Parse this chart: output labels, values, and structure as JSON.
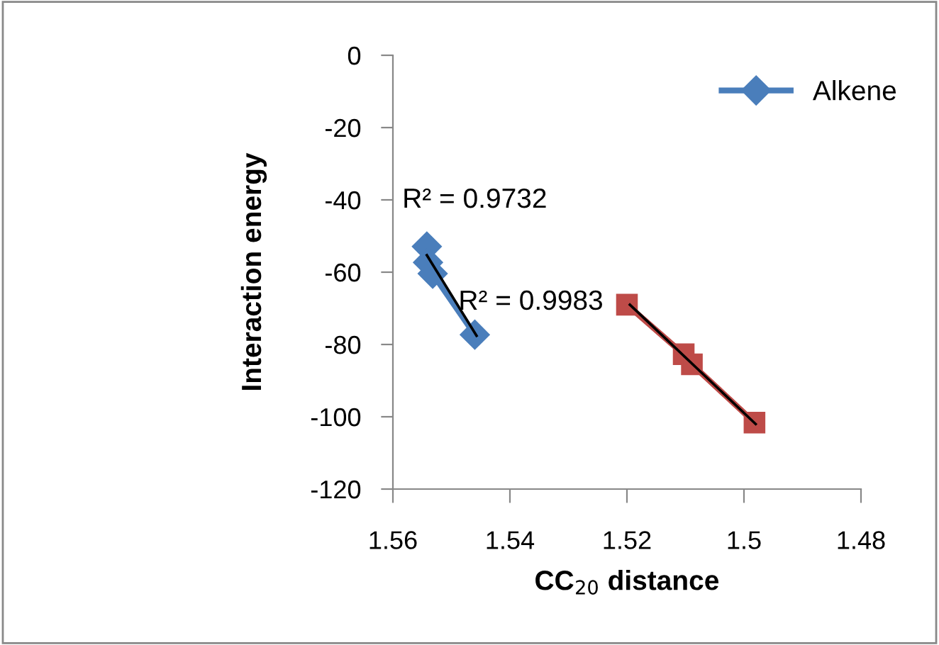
{
  "chart_data": {
    "type": "line",
    "xlabel": "CC$_{20}$ distance",
    "ylabel": "Interaction energy",
    "xlim": [
      1.56,
      1.48
    ],
    "xticks": [
      1.56,
      1.54,
      1.52,
      1.5,
      1.48
    ],
    "ylim": [
      -120,
      0
    ],
    "yticks": [
      -120,
      -100,
      -80,
      -60,
      -40,
      -20,
      0
    ],
    "grid": false,
    "legend": "top right",
    "series": [
      {
        "name": "Alkene",
        "color": "#4a7ebb",
        "marker": "diamond",
        "x": [
          1.5542,
          1.554,
          1.5532,
          1.546
        ],
        "values": [
          -52.9,
          -57.3,
          -60.4,
          -77.3
        ]
      },
      {
        "color": "#be4b48",
        "marker": "square",
        "x": [
          1.52,
          1.5103,
          1.5089,
          1.4982
        ],
        "values": [
          -69.0,
          -82.7,
          -85.5,
          -101.6
        ]
      },
      {
        "color": "#000000",
        "marker": "none",
        "x": [
          1.5542,
          1.5457
        ],
        "values": [
          -55.3,
          -77.6
        ]
      },
      {
        "color": "#000000",
        "marker": "none",
        "x": [
          1.5195,
          1.498
        ],
        "values": [
          -69.0,
          -102.0
        ]
      }
    ],
    "annotations": [
      "R² = 0.9732",
      "R² = 0.9983"
    ]
  }
}
